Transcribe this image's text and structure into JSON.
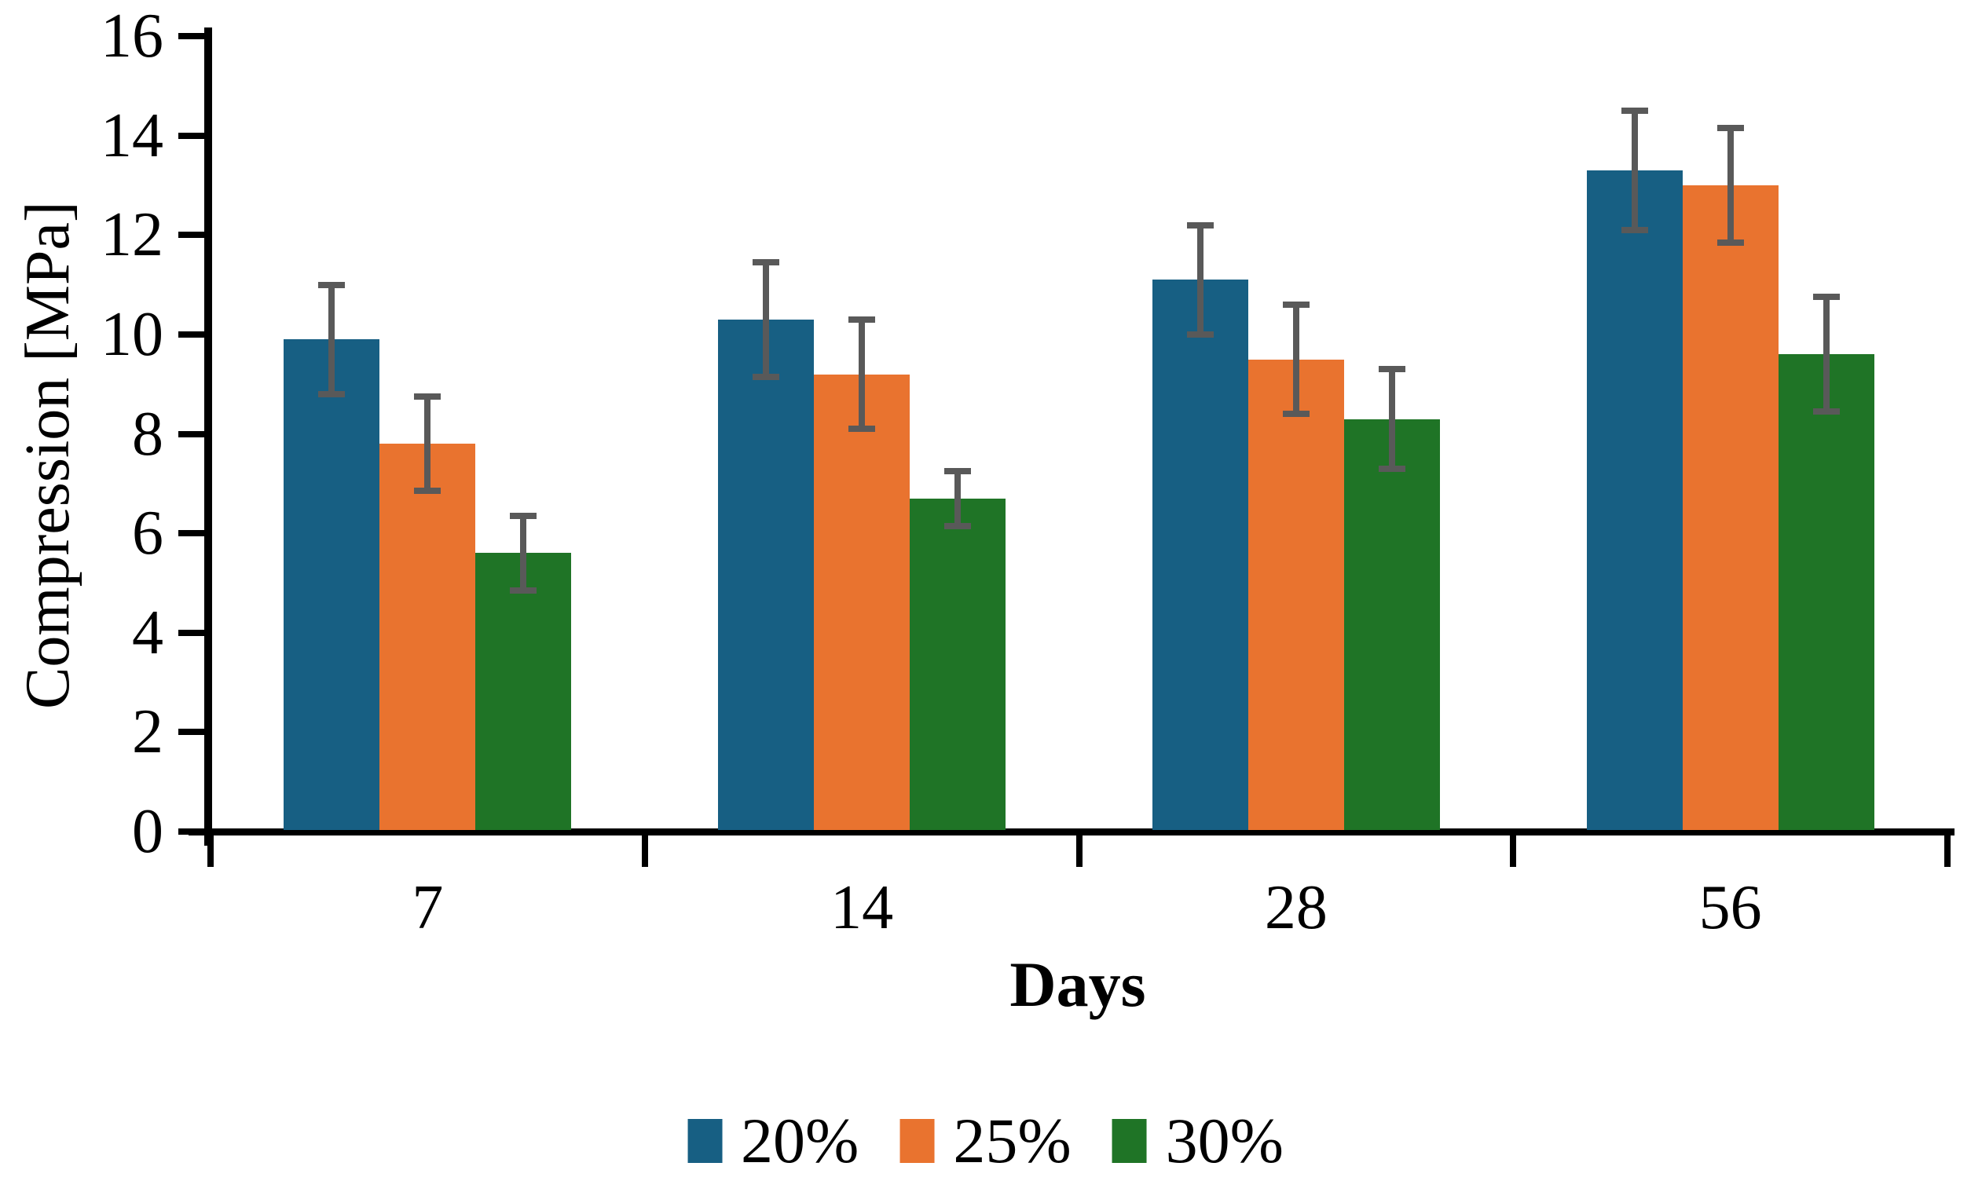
{
  "chart_data": {
    "type": "bar",
    "title": "",
    "xlabel": "Days",
    "ylabel": "Compression [MPa]",
    "categories": [
      "7",
      "14",
      "28",
      "56"
    ],
    "series": [
      {
        "name": "20%",
        "color": "#175f83",
        "values": [
          9.9,
          10.3,
          11.1,
          13.3
        ],
        "errors": [
          1.1,
          1.15,
          1.1,
          1.2
        ]
      },
      {
        "name": "25%",
        "color": "#e9732f",
        "values": [
          7.8,
          9.2,
          9.5,
          13.0
        ],
        "errors": [
          0.95,
          1.1,
          1.1,
          1.15
        ]
      },
      {
        "name": "30%",
        "color": "#1f7426",
        "values": [
          5.6,
          6.7,
          8.3,
          9.6
        ],
        "errors": [
          0.75,
          0.55,
          1.0,
          1.15
        ]
      }
    ],
    "ylim": [
      0,
      16
    ],
    "yticks": [
      0,
      2,
      4,
      6,
      8,
      10,
      12,
      14,
      16
    ],
    "grid": false,
    "legend_position": "bottom-center",
    "error_bar_color": "#595959",
    "axis_color": "#000000"
  }
}
